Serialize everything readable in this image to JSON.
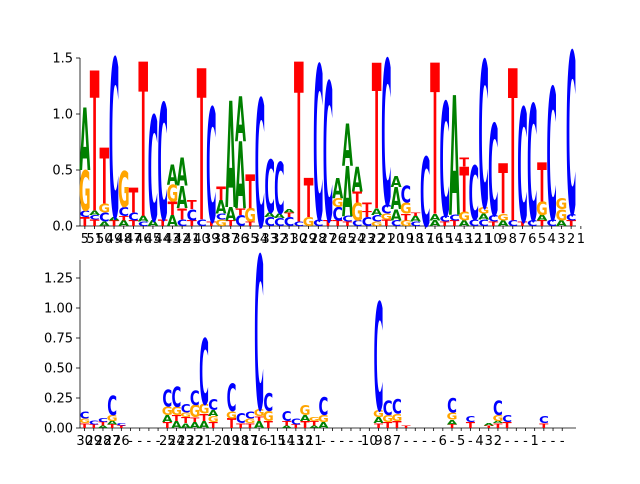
{
  "colors": {
    "A": "#008000",
    "C": "#0000ff",
    "G": "#ffa500",
    "T": "#ff0000"
  },
  "chart_data": [
    {
      "type": "sequence-logo",
      "title": "",
      "xlabel": "",
      "ylabel": "",
      "ylim": [
        0,
        1.5
      ],
      "yticks": [
        0.0,
        0.5,
        1.0,
        1.5
      ],
      "ytick_labels": [
        "0.0",
        "0.5",
        "1.0",
        "1.5"
      ],
      "x_tick_labels": [
        "5",
        "51",
        "50",
        "49",
        "48",
        "47",
        "46",
        "45",
        "44",
        "43",
        "42",
        "41",
        "40",
        "39",
        "38",
        "37",
        "36",
        "35",
        "34",
        "33",
        "32",
        "31",
        "30",
        "29",
        "28",
        "27",
        "26",
        "25",
        "24",
        "23",
        "22",
        "21",
        "20",
        "19",
        "18",
        "17",
        "16",
        "15",
        "14",
        "13",
        "12",
        "11",
        "10",
        "9",
        "8",
        "7",
        "6",
        "5",
        "4",
        "3",
        "2",
        "1"
      ],
      "columns": [
        [
          [
            "T",
            0.08
          ],
          [
            "C",
            0.06
          ],
          [
            "G",
            0.36
          ],
          [
            "A",
            0.56
          ]
        ],
        [
          [
            "T",
            0.06
          ],
          [
            "C",
            0.04
          ],
          [
            "A",
            0.04
          ],
          [
            "T",
            1.25
          ]
        ],
        [
          [
            "A",
            0.04
          ],
          [
            "C",
            0.08
          ],
          [
            "G",
            0.08
          ],
          [
            "T",
            0.5
          ]
        ],
        [
          [
            "T",
            0.05
          ],
          [
            "A",
            0.03
          ],
          [
            "C",
            1.42
          ]
        ],
        [
          [
            "A",
            0.05
          ],
          [
            "T",
            0.04
          ],
          [
            "C",
            0.08
          ],
          [
            "G",
            0.32
          ]
        ],
        [
          [
            "T",
            0.05
          ],
          [
            "C",
            0.07
          ],
          [
            "T",
            0.22
          ]
        ],
        [
          [
            "C",
            0.04
          ],
          [
            "A",
            0.05
          ],
          [
            "T",
            1.38
          ]
        ],
        [
          [
            "A",
            0.05
          ],
          [
            "C",
            0.94
          ]
        ],
        [
          [
            "T",
            0.06
          ],
          [
            "C",
            1.04
          ]
        ],
        [
          [
            "A",
            0.1
          ],
          [
            "T",
            0.12
          ],
          [
            "G",
            0.15
          ],
          [
            "A",
            0.18
          ]
        ],
        [
          [
            "C",
            0.06
          ],
          [
            "T",
            0.1
          ],
          [
            "A",
            0.2
          ],
          [
            "A",
            0.25
          ]
        ],
        [
          [
            "T",
            0.05
          ],
          [
            "C",
            0.1
          ],
          [
            "T",
            0.08
          ]
        ],
        [
          [
            "C",
            0.06
          ],
          [
            "T",
            1.35
          ]
        ],
        [
          [
            "T",
            0.04
          ],
          [
            "C",
            1.02
          ]
        ],
        [
          [
            "G",
            0.06
          ],
          [
            "C",
            0.05
          ],
          [
            "A",
            0.12
          ],
          [
            "T",
            0.12
          ]
        ],
        [
          [
            "T",
            0.05
          ],
          [
            "A",
            0.12
          ],
          [
            "A",
            0.95
          ]
        ],
        [
          [
            "C",
            0.1
          ],
          [
            "T",
            0.06
          ],
          [
            "A",
            0.6
          ],
          [
            "A",
            0.4
          ]
        ],
        [
          [
            "T",
            0.04
          ],
          [
            "G",
            0.12
          ],
          [
            "T",
            0.3
          ]
        ],
        [
          [
            "C",
            1.14
          ]
        ],
        [
          [
            "C",
            0.08
          ],
          [
            "A",
            0.04
          ],
          [
            "C",
            0.47
          ]
        ],
        [
          [
            "C",
            0.07
          ],
          [
            "A",
            0.04
          ],
          [
            "C",
            0.46
          ]
        ],
        [
          [
            "C",
            0.08
          ],
          [
            "T",
            0.04
          ],
          [
            "A",
            0.03
          ]
        ],
        [
          [
            "C",
            0.04
          ],
          [
            "T",
            1.43
          ]
        ],
        [
          [
            "G",
            0.08
          ],
          [
            "T",
            0.35
          ]
        ],
        [
          [
            "C",
            0.06
          ],
          [
            "C",
            1.38
          ]
        ],
        [
          [
            "T",
            0.05
          ],
          [
            "C",
            1.24
          ]
        ],
        [
          [
            "T",
            0.05
          ],
          [
            "C",
            0.12
          ],
          [
            "G",
            0.08
          ],
          [
            "A",
            0.18
          ]
        ],
        [
          [
            "T",
            0.04
          ],
          [
            "C",
            0.05
          ],
          [
            "A",
            0.45
          ],
          [
            "A",
            0.38
          ]
        ],
        [
          [
            "C",
            0.05
          ],
          [
            "G",
            0.16
          ],
          [
            "T",
            0.1
          ],
          [
            "A",
            0.22
          ]
        ],
        [
          [
            "C",
            0.08
          ],
          [
            "T",
            0.05
          ],
          [
            "T",
            0.08
          ]
        ],
        [
          [
            "G",
            0.04
          ],
          [
            "C",
            0.06
          ],
          [
            "A",
            0.06
          ],
          [
            "T",
            1.3
          ]
        ],
        [
          [
            "T",
            0.06
          ],
          [
            "G",
            0.05
          ],
          [
            "C",
            0.08
          ],
          [
            "C",
            1.3
          ]
        ],
        [
          [
            "C",
            0.05
          ],
          [
            "A",
            0.1
          ],
          [
            "A",
            0.2
          ],
          [
            "A",
            0.1
          ]
        ],
        [
          [
            "G",
            0.05
          ],
          [
            "T",
            0.06
          ],
          [
            "G",
            0.1
          ],
          [
            "C",
            0.15
          ]
        ],
        [
          [
            "C",
            0.04
          ],
          [
            "A",
            0.05
          ],
          [
            "T",
            0.03
          ]
        ],
        [
          [
            "C",
            0.62
          ]
        ],
        [
          [
            "A",
            0.05
          ],
          [
            "A",
            0.06
          ],
          [
            "T",
            1.35
          ]
        ],
        [
          [
            "T",
            0.04
          ],
          [
            "C",
            0.05
          ],
          [
            "C",
            1.02
          ]
        ],
        [
          [
            "T",
            0.05
          ],
          [
            "C",
            0.05
          ],
          [
            "A",
            1.07
          ]
        ],
        [
          [
            "A",
            0.05
          ],
          [
            "G",
            0.08
          ],
          [
            "T",
            0.4
          ],
          [
            "T",
            0.08
          ]
        ],
        [
          [
            "C",
            0.06
          ],
          [
            "C",
            0.48
          ]
        ],
        [
          [
            "C",
            0.06
          ],
          [
            "A",
            0.05
          ],
          [
            "G",
            0.06
          ],
          [
            "C",
            1.31
          ]
        ],
        [
          [
            "T",
            0.04
          ],
          [
            "C",
            0.06
          ],
          [
            "C",
            0.82
          ]
        ],
        [
          [
            "A",
            0.05
          ],
          [
            "G",
            0.06
          ],
          [
            "T",
            0.45
          ]
        ],
        [
          [
            "C",
            0.05
          ],
          [
            "T",
            1.36
          ]
        ],
        [
          [
            "T",
            0.04
          ],
          [
            "C",
            1.02
          ]
        ],
        [
          [
            "C",
            0.05
          ],
          [
            "C",
            1.04
          ]
        ],
        [
          [
            "T",
            0.05
          ],
          [
            "A",
            0.05
          ],
          [
            "G",
            0.12
          ],
          [
            "T",
            0.35
          ]
        ],
        [
          [
            "C",
            0.06
          ],
          [
            "C",
            1.18
          ]
        ],
        [
          [
            "A",
            0.05
          ],
          [
            "G",
            0.1
          ],
          [
            "G",
            0.1
          ]
        ],
        [
          [
            "T",
            0.05
          ],
          [
            "C",
            0.06
          ],
          [
            "C",
            1.45
          ]
        ]
      ]
    },
    {
      "type": "sequence-logo",
      "title": "",
      "xlabel": "",
      "ylabel": "",
      "ylim": [
        0,
        1.4
      ],
      "yticks": [
        0.0,
        0.25,
        0.5,
        0.75,
        1.0,
        1.25
      ],
      "ytick_labels": [
        "0.00",
        "0.25",
        "0.50",
        "0.75",
        "1.00",
        "1.25"
      ],
      "x_tick_labels": [
        "30",
        "29",
        "28",
        "27",
        "26",
        "-",
        "-",
        "-",
        "-",
        "25",
        "24",
        "23",
        "22",
        "21",
        "-",
        "20",
        "19",
        "18",
        "17",
        "16",
        "-",
        "15",
        "14",
        "13",
        "12",
        "11",
        "-",
        "-",
        "-",
        "-",
        "-",
        "10",
        "9",
        "8",
        "7",
        "-",
        "-",
        "-",
        "-",
        "6",
        "-",
        "5",
        "-",
        "4",
        "3",
        "2",
        "-",
        "-",
        "-",
        "1",
        "-",
        "-",
        "-"
      ],
      "columns": [
        [
          [
            "T",
            0.04
          ],
          [
            "G",
            0.04
          ],
          [
            "C",
            0.06
          ]
        ],
        [
          [
            "T",
            0.03
          ],
          [
            "C",
            0.03
          ]
        ],
        [
          [
            "A",
            0.02
          ],
          [
            "T",
            0.03
          ],
          [
            "C",
            0.03
          ]
        ],
        [
          [
            "T",
            0.03
          ],
          [
            "A",
            0.03
          ],
          [
            "G",
            0.05
          ],
          [
            "C",
            0.16
          ]
        ],
        [
          [
            "T",
            0.02
          ],
          [
            "C",
            0.02
          ]
        ],
        [],
        [],
        [],
        [],
        [
          [
            "T",
            0.05
          ],
          [
            "A",
            0.06
          ],
          [
            "G",
            0.07
          ],
          [
            "C",
            0.14
          ]
        ],
        [
          [
            "A",
            0.06
          ],
          [
            "T",
            0.05
          ],
          [
            "G",
            0.07
          ],
          [
            "C",
            0.17
          ]
        ],
        [
          [
            "A",
            0.04
          ],
          [
            "T",
            0.05
          ],
          [
            "G",
            0.04
          ],
          [
            "C",
            0.07
          ]
        ],
        [
          [
            "A",
            0.05
          ],
          [
            "T",
            0.04
          ],
          [
            "G",
            0.1
          ],
          [
            "C",
            0.12
          ]
        ],
        [
          [
            "A",
            0.06
          ],
          [
            "T",
            0.06
          ],
          [
            "G",
            0.08
          ],
          [
            "C",
            0.55
          ]
        ],
        [
          [
            "T",
            0.05
          ],
          [
            "G",
            0.05
          ],
          [
            "A",
            0.05
          ],
          [
            "C",
            0.09
          ]
        ],
        [],
        [
          [
            "T",
            0.08
          ],
          [
            "G",
            0.06
          ],
          [
            "C",
            0.23
          ]
        ],
        [
          [
            "T",
            0.04
          ],
          [
            "C",
            0.08
          ]
        ],
        [
          [
            "T",
            0.04
          ],
          [
            "G",
            0.04
          ],
          [
            "C",
            0.06
          ]
        ],
        [
          [
            "A",
            0.06
          ],
          [
            "T",
            0.04
          ],
          [
            "G",
            0.06
          ],
          [
            "C",
            1.28
          ]
        ],
        [
          [
            "T",
            0.06
          ],
          [
            "G",
            0.08
          ],
          [
            "C",
            0.15
          ]
        ],
        [],
        [
          [
            "A",
            0.02
          ],
          [
            "T",
            0.04
          ],
          [
            "C",
            0.08
          ]
        ],
        [
          [
            "T",
            0.03
          ],
          [
            "C",
            0.05
          ]
        ],
        [
          [
            "T",
            0.06
          ],
          [
            "A",
            0.05
          ],
          [
            "G",
            0.08
          ]
        ],
        [
          [
            "A",
            0.02
          ],
          [
            "T",
            0.04
          ],
          [
            "G",
            0.03
          ]
        ],
        [
          [
            "A",
            0.05
          ],
          [
            "G",
            0.06
          ],
          [
            "C",
            0.15
          ]
        ],
        [],
        [],
        [],
        [],
        [],
        [
          [
            "T",
            0.04
          ],
          [
            "A",
            0.05
          ],
          [
            "G",
            0.06
          ],
          [
            "C",
            0.9
          ]
        ],
        [
          [
            "T",
            0.05
          ],
          [
            "G",
            0.06
          ],
          [
            "C",
            0.12
          ]
        ],
        [
          [
            "T",
            0.06
          ],
          [
            "G",
            0.06
          ],
          [
            "C",
            0.12
          ]
        ],
        [
          [
            "T",
            0.02
          ]
        ],
        [],
        [],
        [],
        [],
        [
          [
            "T",
            0.03
          ],
          [
            "A",
            0.04
          ],
          [
            "G",
            0.06
          ],
          [
            "C",
            0.12
          ]
        ],
        [],
        [
          [
            "T",
            0.05
          ],
          [
            "C",
            0.05
          ]
        ],
        [],
        [
          [
            "T",
            0.02
          ],
          [
            "A",
            0.02
          ]
        ],
        [
          [
            "T",
            0.04
          ],
          [
            "A",
            0.02
          ],
          [
            "G",
            0.05
          ],
          [
            "C",
            0.12
          ]
        ],
        [
          [
            "T",
            0.05
          ],
          [
            "C",
            0.06
          ]
        ],
        [],
        [],
        [],
        [
          [
            "T",
            0.04
          ],
          [
            "C",
            0.06
          ]
        ],
        [],
        [],
        []
      ]
    }
  ]
}
